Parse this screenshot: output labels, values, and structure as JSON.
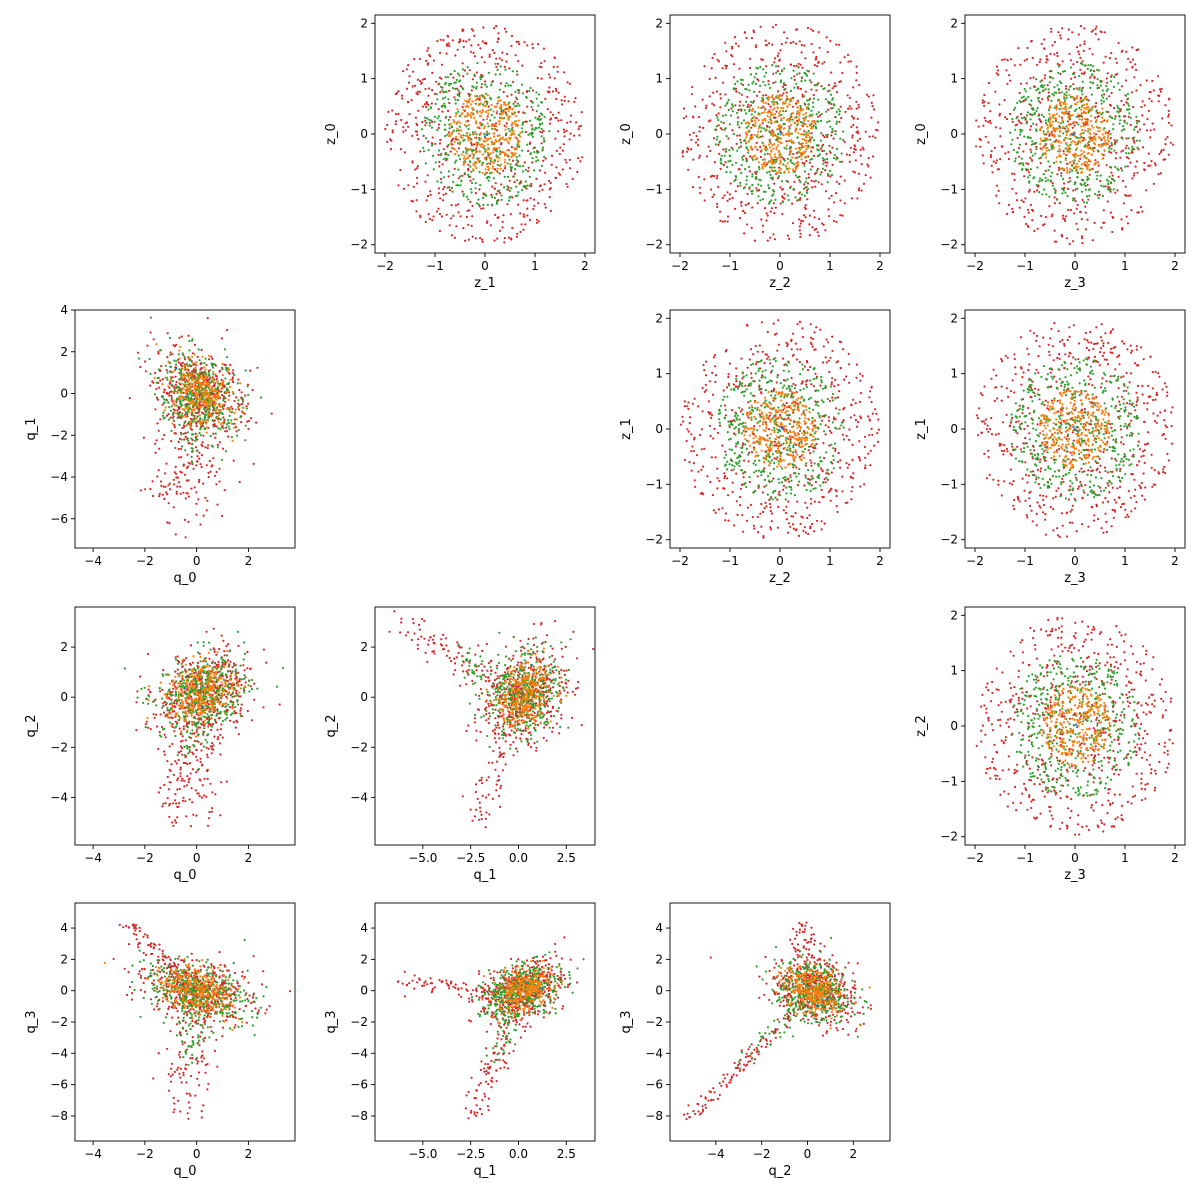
{
  "figure": {
    "layout": "4x4 pairplot; upper triangle: z vs z, lower triangle: q vs q, diagonal empty"
  },
  "chart_data": [
    {
      "type": "scatter",
      "grid_row": 0,
      "grid_col": 1,
      "generator": "disc",
      "xlabel": "z_1",
      "ylabel": "z_0",
      "xlim": [
        -2.2,
        2.2
      ],
      "ylim": [
        -2.15,
        2.15
      ],
      "xticks": [
        -2,
        -1,
        0,
        1,
        2
      ],
      "yticks": [
        -2,
        -1,
        0,
        1,
        2
      ],
      "grid": false
    },
    {
      "type": "scatter",
      "grid_row": 0,
      "grid_col": 2,
      "generator": "disc",
      "xlabel": "z_2",
      "ylabel": "z_0",
      "xlim": [
        -2.2,
        2.2
      ],
      "ylim": [
        -2.15,
        2.15
      ],
      "xticks": [
        -2,
        -1,
        0,
        1,
        2
      ],
      "yticks": [
        -2,
        -1,
        0,
        1,
        2
      ],
      "grid": false
    },
    {
      "type": "scatter",
      "grid_row": 0,
      "grid_col": 3,
      "generator": "disc",
      "xlabel": "z_3",
      "ylabel": "z_0",
      "xlim": [
        -2.2,
        2.2
      ],
      "ylim": [
        -2.15,
        2.15
      ],
      "xticks": [
        -2,
        -1,
        0,
        1,
        2
      ],
      "yticks": [
        -2,
        -1,
        0,
        1,
        2
      ],
      "grid": false
    },
    {
      "type": "scatter",
      "grid_row": 1,
      "grid_col": 2,
      "generator": "disc",
      "xlabel": "z_2",
      "ylabel": "z_1",
      "xlim": [
        -2.2,
        2.2
      ],
      "ylim": [
        -2.15,
        2.15
      ],
      "xticks": [
        -2,
        -1,
        0,
        1,
        2
      ],
      "yticks": [
        -2,
        -1,
        0,
        1,
        2
      ],
      "grid": false
    },
    {
      "type": "scatter",
      "grid_row": 1,
      "grid_col": 3,
      "generator": "disc",
      "xlabel": "z_3",
      "ylabel": "z_1",
      "xlim": [
        -2.2,
        2.2
      ],
      "ylim": [
        -2.15,
        2.15
      ],
      "xticks": [
        -2,
        -1,
        0,
        1,
        2
      ],
      "yticks": [
        -2,
        -1,
        0,
        1,
        2
      ],
      "grid": false
    },
    {
      "type": "scatter",
      "grid_row": 2,
      "grid_col": 3,
      "generator": "disc",
      "xlabel": "z_3",
      "ylabel": "z_2",
      "xlim": [
        -2.2,
        2.2
      ],
      "ylim": [
        -2.15,
        2.15
      ],
      "xticks": [
        -2,
        -1,
        0,
        1,
        2
      ],
      "yticks": [
        -2,
        -1,
        0,
        1,
        2
      ],
      "grid": false
    },
    {
      "type": "scatter",
      "grid_row": 1,
      "grid_col": 0,
      "generator": "cloud",
      "xlabel": "q_0",
      "ylabel": "q_1",
      "xlim": [
        -4.7,
        3.8
      ],
      "ylim": [
        -7.4,
        4.0
      ],
      "xticks": [
        -4,
        -2,
        0,
        2
      ],
      "xticklabels": [
        "−4",
        "−2",
        "0",
        "2"
      ],
      "yticks": [
        -6,
        -4,
        -2,
        0,
        2,
        4
      ],
      "yticklabels": [
        "−6",
        "−4",
        "−2",
        "0",
        "2",
        "4"
      ],
      "core": {
        "cx": 0.1,
        "cy": 0.0,
        "sx": 0.9,
        "sy": 1.1,
        "rho": -0.3
      },
      "tail": {
        "dir": [
          -0.7,
          -5.5
        ],
        "spread": 1.2
      },
      "grid": false
    },
    {
      "type": "scatter",
      "grid_row": 2,
      "grid_col": 0,
      "generator": "cloud",
      "xlabel": "q_0",
      "ylabel": "q_2",
      "xlim": [
        -4.7,
        3.8
      ],
      "ylim": [
        -5.9,
        3.6
      ],
      "xticks": [
        -4,
        -2,
        0,
        2
      ],
      "xticklabels": [
        "−4",
        "−2",
        "0",
        "2"
      ],
      "yticks": [
        -4,
        -2,
        0,
        2
      ],
      "yticklabels": [
        "−4",
        "−2",
        "0",
        "2"
      ],
      "core": {
        "cx": 0.2,
        "cy": 0.2,
        "sx": 1.0,
        "sy": 0.9,
        "rho": 0.25
      },
      "tail": {
        "dir": [
          -0.8,
          -4.8
        ],
        "spread": 1.0
      },
      "grid": false
    },
    {
      "type": "scatter",
      "grid_row": 2,
      "grid_col": 1,
      "generator": "cloud",
      "xlabel": "q_1",
      "ylabel": "q_2",
      "xlim": [
        -7.5,
        4.0
      ],
      "ylim": [
        -5.9,
        3.6
      ],
      "xticks": [
        -5,
        -2.5,
        0,
        2.5
      ],
      "xticklabels": [
        "−5.0",
        "−2.5",
        "0.0",
        "2.5"
      ],
      "yticks": [
        -4,
        -2,
        0,
        2
      ],
      "yticklabels": [
        "−4",
        "−2",
        "0",
        "2"
      ],
      "core": {
        "cx": 0.3,
        "cy": 0.1,
        "sx": 1.1,
        "sy": 1.0,
        "rho": 0.2
      },
      "tail": {
        "dir": [
          -6.5,
          2.8
        ],
        "spread": 0.6
      },
      "tail2": {
        "dir": [
          -2.5,
          -5.0
        ],
        "spread": 0.6
      },
      "grid": false
    },
    {
      "type": "scatter",
      "grid_row": 3,
      "grid_col": 0,
      "generator": "cloud",
      "xlabel": "q_0",
      "ylabel": "q_3",
      "xlim": [
        -4.7,
        3.8
      ],
      "ylim": [
        -9.6,
        5.6
      ],
      "xticks": [
        -4,
        -2,
        0,
        2
      ],
      "xticklabels": [
        "−4",
        "−2",
        "0",
        "2"
      ],
      "yticks": [
        -8,
        -6,
        -4,
        -2,
        0,
        2,
        4
      ],
      "yticklabels": [
        "−8",
        "−6",
        "−4",
        "−2",
        "0",
        "2",
        "4"
      ],
      "core": {
        "cx": 0.0,
        "cy": 0.0,
        "sx": 1.1,
        "sy": 1.1,
        "rho": -0.35
      },
      "tail": {
        "dir": [
          -0.6,
          -8.0
        ],
        "spread": 0.8
      },
      "tail2": {
        "dir": [
          -2.6,
          4.2
        ],
        "spread": 0.4
      },
      "grid": false
    },
    {
      "type": "scatter",
      "grid_row": 3,
      "grid_col": 1,
      "generator": "cloud",
      "xlabel": "q_1",
      "ylabel": "q_3",
      "xlim": [
        -7.5,
        4.0
      ],
      "ylim": [
        -9.6,
        5.6
      ],
      "xticks": [
        -5,
        -2.5,
        0,
        2.5
      ],
      "xticklabels": [
        "−5.0",
        "−2.5",
        "0.0",
        "2.5"
      ],
      "yticks": [
        -8,
        -6,
        -4,
        -2,
        0,
        2,
        4
      ],
      "yticklabels": [
        "−8",
        "−6",
        "−4",
        "−2",
        "0",
        "2",
        "4"
      ],
      "core": {
        "cx": 0.2,
        "cy": 0.0,
        "sx": 1.1,
        "sy": 1.0,
        "rho": 0.35
      },
      "tail": {
        "dir": [
          -2.5,
          -8.0
        ],
        "spread": 0.6
      },
      "tail2": {
        "dir": [
          -6.5,
          0.5
        ],
        "spread": 0.4
      },
      "grid": false
    },
    {
      "type": "scatter",
      "grid_row": 3,
      "grid_col": 2,
      "generator": "cloud",
      "xlabel": "q_2",
      "ylabel": "q_3",
      "xlim": [
        -6.0,
        3.6
      ],
      "ylim": [
        -9.6,
        5.6
      ],
      "xticks": [
        -4,
        -2,
        0,
        2
      ],
      "xticklabels": [
        "−4",
        "−2",
        "0",
        "2"
      ],
      "yticks": [
        -8,
        -6,
        -4,
        -2,
        0,
        2,
        4
      ],
      "yticklabels": [
        "−8",
        "−6",
        "−4",
        "−2",
        "0",
        "2",
        "4"
      ],
      "core": {
        "cx": 0.3,
        "cy": 0.0,
        "sx": 0.95,
        "sy": 1.1,
        "rho": -0.25
      },
      "tail": {
        "dir": [
          -5.5,
          -8.2
        ],
        "spread": 0.3
      },
      "tail2": {
        "dir": [
          -0.5,
          4.2
        ],
        "spread": 0.5
      },
      "grid": false
    }
  ],
  "series": [
    {
      "color": "#d62728",
      "radius_z": 2.0,
      "count": 620
    },
    {
      "color": "#2ca02c",
      "radius_z": 1.3,
      "count": 440
    },
    {
      "color": "#ff7f0e",
      "radius_z": 0.72,
      "count": 300
    },
    {
      "color": "#1f77b4",
      "radius_z": 0.05,
      "count": 3
    }
  ]
}
